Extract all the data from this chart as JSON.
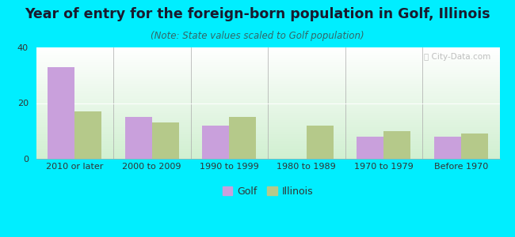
{
  "title": "Year of entry for the foreign-born population in Golf, Illinois",
  "subtitle": "(Note: State values scaled to Golf population)",
  "categories": [
    "2010 or later",
    "2000 to 2009",
    "1990 to 1999",
    "1980 to 1989",
    "1970 to 1979",
    "Before 1970"
  ],
  "golf_values": [
    33,
    15,
    12,
    0,
    8,
    8
  ],
  "illinois_values": [
    17,
    13,
    15,
    12,
    10,
    9
  ],
  "golf_color": "#c9a0dc",
  "illinois_color": "#b5c98a",
  "background_outer": "#00eeff",
  "ylim": [
    0,
    40
  ],
  "yticks": [
    0,
    20,
    40
  ],
  "bar_width": 0.35,
  "title_fontsize": 12.5,
  "subtitle_fontsize": 8.5,
  "tick_fontsize": 8,
  "legend_fontsize": 9,
  "title_color": "#1a1a2e",
  "subtitle_color": "#336666",
  "tick_color": "#333333"
}
